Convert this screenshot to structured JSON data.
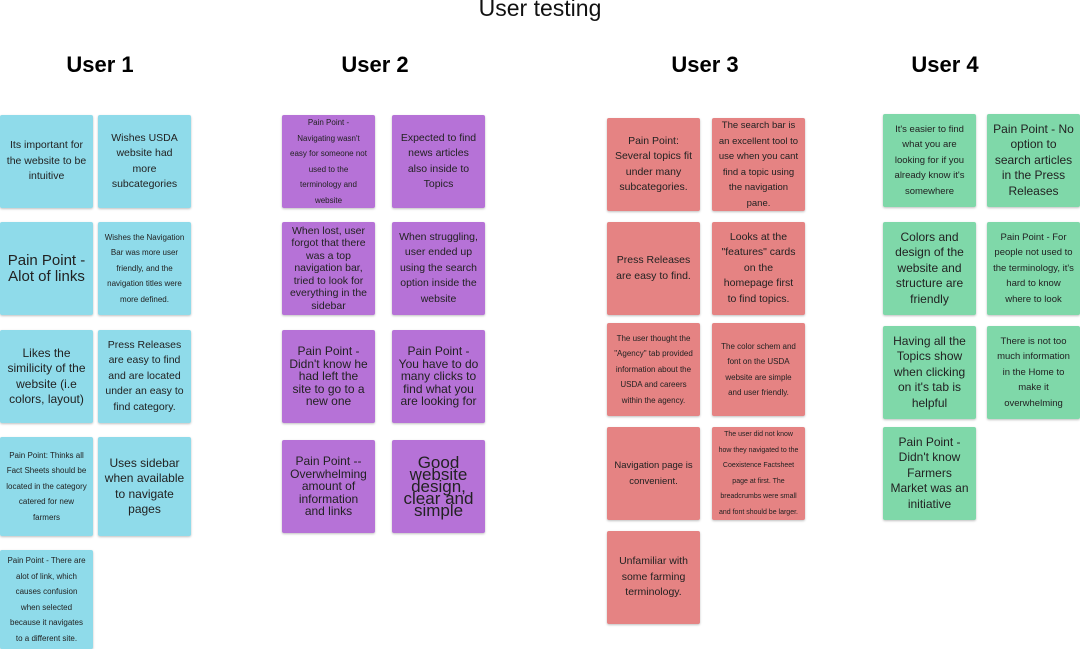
{
  "board": {
    "title": "User testing"
  },
  "columns": [
    {
      "title": "User 1"
    },
    {
      "title": "User 2"
    },
    {
      "title": "User 3"
    },
    {
      "title": "User 4"
    }
  ],
  "notes": {
    "user1": [
      "Its important for the website to be intuitive",
      "Wishes USDA website had more subcategories",
      "Pain Point - Alot of links",
      "Wishes the Navigation Bar was more user friendly, and the navigation titles  were more defined.",
      "Likes the similicity of the website (i.e colors, layout)",
      "Press Releases are easy to find and are located under an easy to find category.",
      "Pain Point: Thinks all Fact Sheets should be located in the category catered for new farmers",
      "Uses sidebar when available to navigate pages",
      "Pain Point - There are alot of link, which causes confusion when selected because it navigates to a different site."
    ],
    "user2": [
      "Pain Point - Navigating wasn't easy for someone not used to the terminology and website",
      "Expected to find news articles also inside to Topics",
      "When lost, user forgot that there was a top navigation bar, tried to look for everything in the sidebar",
      "When struggling, user ended up using the search option inside the website",
      "Pain Point - Didn't know he had left the site to go to a new one",
      "Pain Point - You have to do many clicks to find what you are looking for",
      "Pain Point -- Overwhelming amount of information and links",
      "Good website design, clear and simple"
    ],
    "user3": [
      "Pain Point: Several topics fit under many subcategories.",
      "The search bar is an excellent tool to use when you cant find a topic using the navigation pane.",
      "Press Releases are easy to find.",
      "Looks at the \"features\" cards on the homepage first to find topics.",
      "The user thought the \"Agency\" tab provided information about the USDA and  careers within the agency.",
      "The color schem and font on the USDA website are simple and user friendly.",
      "Navigation page is convenient.",
      "The user did not know how they navigated to the Coexistence Factsheet page at first. The breadcrumbs were small and font should be larger.",
      "Unfamiliar with some farming terminology."
    ],
    "user4": [
      "It's easier to find what you are looking for if you already know it's somewhere",
      "Pain Point - No option to search articles in the Press Releases",
      "Colors and design of the website and structure are friendly",
      "Pain Point - For people not used to the terminology, it's hard to know where to look",
      "Having all the Topics show when clicking on it's tab is helpful",
      "There is not too much information in the Home to make it overwhelming",
      "Pain Point - Didn't know Farmers Market was an initiative"
    ]
  },
  "colors": {
    "user1": "#8fdbea",
    "user2": "#b672d7",
    "user3": "#e58383",
    "user4": "#7fd8a9"
  }
}
